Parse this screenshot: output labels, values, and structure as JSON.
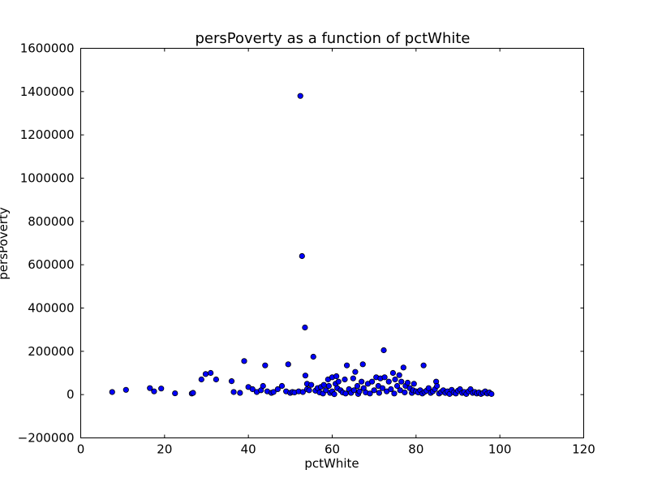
{
  "chart_data": {
    "type": "scatter",
    "title": "persPoverty as a function of pctWhite",
    "xlabel": "pctWhite",
    "ylabel": "persPoverty",
    "xlim": [
      0,
      120
    ],
    "ylim": [
      -200000,
      1600000
    ],
    "xticks": [
      0,
      20,
      40,
      60,
      80,
      100,
      120
    ],
    "yticks": [
      -200000,
      0,
      200000,
      400000,
      600000,
      800000,
      1000000,
      1200000,
      1400000,
      1600000
    ],
    "grid": false,
    "marker_color": "#0000ff",
    "marker_edge": "#000000",
    "points": [
      [
        7.5,
        12000
      ],
      [
        10.8,
        22000
      ],
      [
        16.5,
        30000
      ],
      [
        17.5,
        15000
      ],
      [
        19.2,
        28000
      ],
      [
        22.5,
        6000
      ],
      [
        26.5,
        5000
      ],
      [
        26.8,
        8000
      ],
      [
        28.8,
        70000
      ],
      [
        29.8,
        95000
      ],
      [
        31.0,
        100000
      ],
      [
        32.3,
        70000
      ],
      [
        36.0,
        62000
      ],
      [
        36.5,
        12000
      ],
      [
        38.0,
        8000
      ],
      [
        39.0,
        155000
      ],
      [
        40.0,
        35000
      ],
      [
        41.0,
        25000
      ],
      [
        42.0,
        12000
      ],
      [
        43.0,
        20000
      ],
      [
        43.5,
        40000
      ],
      [
        44.0,
        135000
      ],
      [
        44.5,
        15000
      ],
      [
        45.5,
        8000
      ],
      [
        46.0,
        12000
      ],
      [
        47.0,
        25000
      ],
      [
        48.0,
        40000
      ],
      [
        49.0,
        15000
      ],
      [
        49.5,
        140000
      ],
      [
        50.0,
        8000
      ],
      [
        50.5,
        12000
      ],
      [
        51.0,
        10000
      ],
      [
        52.0,
        15000
      ],
      [
        52.4,
        1380000
      ],
      [
        52.8,
        640000
      ],
      [
        53.0,
        12000
      ],
      [
        53.5,
        310000
      ],
      [
        53.6,
        88000
      ],
      [
        54.0,
        25000
      ],
      [
        54.0,
        50000
      ],
      [
        54.5,
        20000
      ],
      [
        55.0,
        45000
      ],
      [
        55.5,
        175000
      ],
      [
        56.0,
        18000
      ],
      [
        56.5,
        30000
      ],
      [
        57.0,
        10000
      ],
      [
        57.3,
        35000
      ],
      [
        57.8,
        5000
      ],
      [
        58.0,
        45000
      ],
      [
        58.5,
        20000
      ],
      [
        59.0,
        70000
      ],
      [
        59.2,
        40000
      ],
      [
        59.5,
        8000
      ],
      [
        60.0,
        80000
      ],
      [
        60.0,
        15000
      ],
      [
        60.5,
        2000
      ],
      [
        60.8,
        50000
      ],
      [
        61.0,
        85000
      ],
      [
        61.2,
        30000
      ],
      [
        61.5,
        60000
      ],
      [
        62.0,
        20000
      ],
      [
        62.5,
        10000
      ],
      [
        63.0,
        70000
      ],
      [
        63.2,
        5000
      ],
      [
        63.5,
        135000
      ],
      [
        64.0,
        25000
      ],
      [
        64.5,
        8000
      ],
      [
        65.0,
        75000
      ],
      [
        65.2,
        20000
      ],
      [
        65.5,
        105000
      ],
      [
        66.0,
        40000
      ],
      [
        66.2,
        3000
      ],
      [
        66.5,
        15000
      ],
      [
        67.0,
        60000
      ],
      [
        67.3,
        140000
      ],
      [
        67.5,
        30000
      ],
      [
        68.0,
        10000
      ],
      [
        68.5,
        50000
      ],
      [
        69.0,
        5000
      ],
      [
        69.5,
        60000
      ],
      [
        70.0,
        20000
      ],
      [
        70.5,
        80000
      ],
      [
        71.0,
        40000
      ],
      [
        71.2,
        8000
      ],
      [
        71.5,
        75000
      ],
      [
        72.0,
        30000
      ],
      [
        72.3,
        205000
      ],
      [
        72.5,
        80000
      ],
      [
        73.0,
        15000
      ],
      [
        73.5,
        60000
      ],
      [
        74.0,
        25000
      ],
      [
        74.5,
        100000
      ],
      [
        74.8,
        5000
      ],
      [
        75.0,
        70000
      ],
      [
        75.5,
        40000
      ],
      [
        76.0,
        90000
      ],
      [
        76.2,
        20000
      ],
      [
        76.5,
        60000
      ],
      [
        77.0,
        125000
      ],
      [
        77.3,
        10000
      ],
      [
        77.5,
        40000
      ],
      [
        78.0,
        55000
      ],
      [
        78.5,
        30000
      ],
      [
        79.0,
        8000
      ],
      [
        79.3,
        20000
      ],
      [
        79.5,
        50000
      ],
      [
        80.0,
        15000
      ],
      [
        80.5,
        10000
      ],
      [
        81.0,
        20000
      ],
      [
        81.5,
        5000
      ],
      [
        81.8,
        135000
      ],
      [
        82.0,
        12000
      ],
      [
        82.5,
        18000
      ],
      [
        83.0,
        30000
      ],
      [
        83.5,
        8000
      ],
      [
        84.0,
        15000
      ],
      [
        84.5,
        25000
      ],
      [
        84.8,
        60000
      ],
      [
        85.0,
        40000
      ],
      [
        85.5,
        5000
      ],
      [
        86.0,
        12000
      ],
      [
        86.5,
        20000
      ],
      [
        87.0,
        8000
      ],
      [
        87.5,
        15000
      ],
      [
        88.0,
        3000
      ],
      [
        88.5,
        22000
      ],
      [
        89.0,
        10000
      ],
      [
        89.5,
        5000
      ],
      [
        90.0,
        18000
      ],
      [
        90.5,
        25000
      ],
      [
        91.0,
        8000
      ],
      [
        91.5,
        12000
      ],
      [
        92.0,
        3000
      ],
      [
        92.5,
        15000
      ],
      [
        93.0,
        25000
      ],
      [
        93.5,
        8000
      ],
      [
        94.0,
        12000
      ],
      [
        94.5,
        5000
      ],
      [
        95.0,
        10000
      ],
      [
        95.5,
        3000
      ],
      [
        96.0,
        8000
      ],
      [
        96.5,
        15000
      ],
      [
        97.0,
        5000
      ],
      [
        97.5,
        10000
      ],
      [
        98.0,
        3000
      ]
    ]
  }
}
